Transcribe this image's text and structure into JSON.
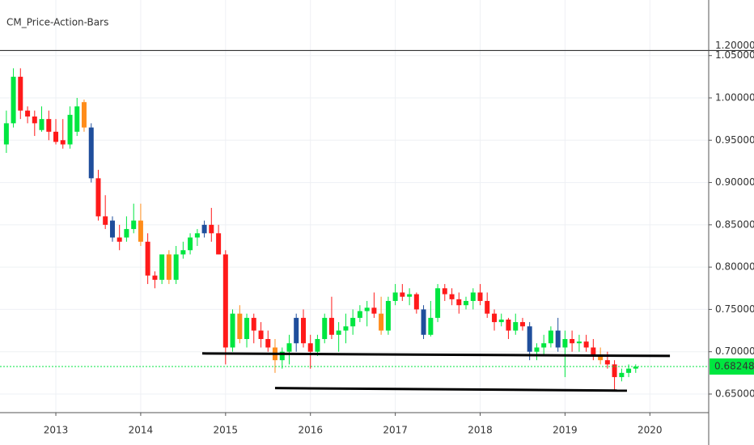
{
  "chart_data": {
    "type": "candlestick",
    "title": "CM_Price-Action-Bars",
    "x": [
      2012.417,
      2012.5,
      2012.583,
      2012.667,
      2012.75,
      2012.833,
      2012.917,
      2013.0,
      2013.083,
      2013.167,
      2013.25,
      2013.333,
      2013.417,
      2013.5,
      2013.583,
      2013.667,
      2013.75,
      2013.833,
      2013.917,
      2014.0,
      2014.083,
      2014.167,
      2014.25,
      2014.333,
      2014.417,
      2014.5,
      2014.583,
      2014.667,
      2014.75,
      2014.833,
      2014.917,
      2015.0,
      2015.083,
      2015.167,
      2015.25,
      2015.333,
      2015.417,
      2015.5,
      2015.583,
      2015.667,
      2015.75,
      2015.833,
      2015.917,
      2016.0,
      2016.083,
      2016.167,
      2016.25,
      2016.333,
      2016.417,
      2016.5,
      2016.583,
      2016.667,
      2016.75,
      2016.833,
      2016.917,
      2017.0,
      2017.083,
      2017.167,
      2017.25,
      2017.333,
      2017.417,
      2017.5,
      2017.583,
      2017.667,
      2017.75,
      2017.833,
      2017.917,
      2018.0,
      2018.083,
      2018.167,
      2018.25,
      2018.333,
      2018.417,
      2018.5,
      2018.583,
      2018.667,
      2018.75,
      2018.833,
      2018.917,
      2019.0,
      2019.083,
      2019.167,
      2019.25,
      2019.333,
      2019.417,
      2019.5,
      2019.583,
      2019.667,
      2019.75,
      2019.833
    ],
    "open": [
      0.945,
      0.97,
      1.025,
      0.985,
      0.978,
      0.962,
      0.975,
      0.96,
      0.95,
      0.945,
      0.96,
      0.995,
      0.965,
      0.905,
      0.86,
      0.855,
      0.835,
      0.835,
      0.845,
      0.855,
      0.83,
      0.79,
      0.785,
      0.815,
      0.785,
      0.815,
      0.82,
      0.835,
      0.84,
      0.85,
      0.84,
      0.815,
      0.705,
      0.745,
      0.715,
      0.74,
      0.725,
      0.715,
      0.705,
      0.69,
      0.7,
      0.71,
      0.74,
      0.71,
      0.7,
      0.715,
      0.74,
      0.72,
      0.725,
      0.73,
      0.74,
      0.748,
      0.752,
      0.745,
      0.725,
      0.76,
      0.77,
      0.765,
      0.768,
      0.75,
      0.72,
      0.74,
      0.775,
      0.768,
      0.762,
      0.755,
      0.76,
      0.77,
      0.76,
      0.745,
      0.735,
      0.738,
      0.725,
      0.735,
      0.73,
      0.7,
      0.705,
      0.71,
      0.725,
      0.705,
      0.715,
      0.71,
      0.712,
      0.705,
      0.695,
      0.69,
      0.685,
      0.67,
      0.675,
      0.68
    ],
    "high": [
      0.985,
      1.035,
      1.035,
      0.99,
      0.985,
      0.99,
      0.985,
      0.975,
      0.975,
      0.99,
      1.0,
      0.998,
      0.97,
      0.915,
      0.885,
      0.86,
      0.85,
      0.86,
      0.875,
      0.875,
      0.84,
      0.795,
      0.815,
      0.82,
      0.825,
      0.83,
      0.84,
      0.845,
      0.855,
      0.87,
      0.85,
      0.82,
      0.75,
      0.755,
      0.745,
      0.745,
      0.735,
      0.725,
      0.715,
      0.705,
      0.72,
      0.745,
      0.75,
      0.72,
      0.72,
      0.745,
      0.765,
      0.735,
      0.745,
      0.75,
      0.755,
      0.76,
      0.77,
      0.765,
      0.765,
      0.78,
      0.78,
      0.775,
      0.77,
      0.755,
      0.76,
      0.78,
      0.78,
      0.775,
      0.77,
      0.765,
      0.775,
      0.78,
      0.77,
      0.75,
      0.745,
      0.74,
      0.745,
      0.74,
      0.735,
      0.71,
      0.72,
      0.73,
      0.74,
      0.725,
      0.725,
      0.72,
      0.72,
      0.715,
      0.705,
      0.7,
      0.69,
      0.68,
      0.685,
      0.685
    ],
    "low": [
      0.935,
      0.965,
      0.975,
      0.97,
      0.955,
      0.96,
      0.95,
      0.945,
      0.94,
      0.94,
      0.955,
      0.96,
      0.9,
      0.855,
      0.845,
      0.83,
      0.82,
      0.83,
      0.84,
      0.825,
      0.78,
      0.775,
      0.78,
      0.78,
      0.78,
      0.81,
      0.815,
      0.825,
      0.835,
      0.83,
      0.815,
      0.685,
      0.7,
      0.71,
      0.705,
      0.71,
      0.705,
      0.7,
      0.675,
      0.68,
      0.685,
      0.7,
      0.705,
      0.68,
      0.695,
      0.71,
      0.715,
      0.7,
      0.71,
      0.72,
      0.735,
      0.73,
      0.74,
      0.72,
      0.72,
      0.755,
      0.76,
      0.755,
      0.745,
      0.715,
      0.718,
      0.735,
      0.76,
      0.755,
      0.745,
      0.75,
      0.75,
      0.755,
      0.74,
      0.725,
      0.73,
      0.715,
      0.72,
      0.725,
      0.69,
      0.69,
      0.695,
      0.705,
      0.7,
      0.67,
      0.7,
      0.7,
      0.7,
      0.69,
      0.685,
      0.68,
      0.655,
      0.665,
      0.67,
      0.675
    ],
    "close": [
      0.97,
      1.025,
      0.985,
      0.978,
      0.97,
      0.975,
      0.96,
      0.948,
      0.945,
      0.98,
      0.99,
      0.965,
      0.905,
      0.86,
      0.85,
      0.835,
      0.83,
      0.845,
      0.855,
      0.83,
      0.79,
      0.785,
      0.815,
      0.785,
      0.815,
      0.82,
      0.835,
      0.84,
      0.85,
      0.84,
      0.815,
      0.705,
      0.745,
      0.715,
      0.74,
      0.725,
      0.715,
      0.705,
      0.69,
      0.7,
      0.71,
      0.74,
      0.71,
      0.7,
      0.715,
      0.74,
      0.72,
      0.725,
      0.73,
      0.74,
      0.748,
      0.752,
      0.745,
      0.725,
      0.76,
      0.77,
      0.765,
      0.768,
      0.75,
      0.72,
      0.74,
      0.775,
      0.768,
      0.762,
      0.755,
      0.76,
      0.77,
      0.76,
      0.745,
      0.735,
      0.738,
      0.725,
      0.735,
      0.73,
      0.7,
      0.705,
      0.71,
      0.725,
      0.705,
      0.715,
      0.71,
      0.712,
      0.705,
      0.695,
      0.69,
      0.685,
      0.67,
      0.675,
      0.68,
      0.68248
    ],
    "colors": [
      "#00e640",
      "#00e640",
      "#ff1a1a",
      "#ff1a1a",
      "#ff1a1a",
      "#00e640",
      "#ff1a1a",
      "#ff1a1a",
      "#ff1a1a",
      "#00e640",
      "#00e640",
      "#ff8c1a",
      "#1f4e9c",
      "#ff1a1a",
      "#ff1a1a",
      "#1f4e9c",
      "#ff1a1a",
      "#00e640",
      "#00e640",
      "#ff8c1a",
      "#ff1a1a",
      "#ff1a1a",
      "#00e640",
      "#ff8c1a",
      "#00e640",
      "#00e640",
      "#00e640",
      "#00e640",
      "#1f4e9c",
      "#ff1a1a",
      "#ff1a1a",
      "#ff1a1a",
      "#00e640",
      "#ff8c1a",
      "#00e640",
      "#ff1a1a",
      "#ff1a1a",
      "#ff1a1a",
      "#ff8c1a",
      "#00e640",
      "#00e640",
      "#1f4e9c",
      "#ff1a1a",
      "#ff1a1a",
      "#00e640",
      "#00e640",
      "#ff1a1a",
      "#00e640",
      "#00e640",
      "#00e640",
      "#00e640",
      "#00e640",
      "#ff1a1a",
      "#ff8c1a",
      "#00e640",
      "#00e640",
      "#ff1a1a",
      "#00e640",
      "#ff1a1a",
      "#1f4e9c",
      "#00e640",
      "#00e640",
      "#ff1a1a",
      "#ff1a1a",
      "#ff1a1a",
      "#00e640",
      "#00e640",
      "#ff1a1a",
      "#ff1a1a",
      "#ff1a1a",
      "#00e640",
      "#ff1a1a",
      "#00e640",
      "#ff1a1a",
      "#1f4e9c",
      "#00e640",
      "#00e640",
      "#00e640",
      "#1f4e9c",
      "#00e640",
      "#ff1a1a",
      "#00e640",
      "#ff1a1a",
      "#ff1a1a",
      "#ff8c1a",
      "#ff1a1a",
      "#ff1a1a",
      "#00e640",
      "#00e640",
      "#00e640"
    ],
    "xlim": [
      2012.342,
      2020.693
    ],
    "ylim": [
      0.628,
      1.1157
    ],
    "xticks": [
      2013,
      2014,
      2015,
      2016,
      2017,
      2018,
      2019,
      2020
    ],
    "yticks": [
      {
        "value": 0.65,
        "label": "0.65000"
      },
      {
        "value": 0.7,
        "label": "0.70000"
      },
      {
        "value": 0.75,
        "label": "0.75000"
      },
      {
        "value": 0.8,
        "label": "0.80000"
      },
      {
        "value": 0.85,
        "label": "0.85000"
      },
      {
        "value": 0.9,
        "label": "0.90000"
      },
      {
        "value": 0.95,
        "label": "0.95000"
      },
      {
        "value": 1.0,
        "label": "1.00000"
      },
      {
        "value": 1.05,
        "label": "1.05000"
      }
    ],
    "top_label": "1.20000",
    "horizontal_line": 1.056,
    "trend_lines": [
      {
        "x": [
          2014.725,
          2020.236
        ],
        "y": [
          0.698,
          0.695
        ]
      },
      {
        "x": [
          2015.583,
          2019.73
        ],
        "y": [
          0.657,
          0.654
        ]
      }
    ],
    "last_price": {
      "value": 0.68248,
      "label": "0.68248",
      "color": "#00e640"
    },
    "grid": true
  }
}
